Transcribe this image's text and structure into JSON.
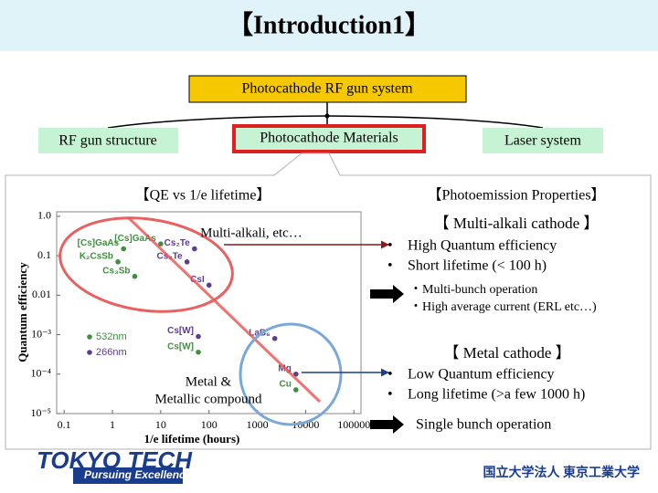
{
  "title": "【Introduction1】",
  "diagram": {
    "root": "Photocathode RF gun system",
    "children": [
      "RF gun structure",
      "Photocathode Materials",
      "Laser system"
    ]
  },
  "left_panel": {
    "heading": "【QE vs 1/e lifetime】",
    "plot": {
      "y_label": "Quantum efficiency",
      "x_label": "1/e lifetime (hours)",
      "log_x": true,
      "log_y": true,
      "xlim": [
        0.07,
        140000
      ],
      "ylim": [
        1e-05,
        1.3
      ],
      "xticks": [
        0.1,
        1,
        10,
        100,
        1000,
        10000,
        100000
      ],
      "yticks": [
        {
          "value": 1,
          "label": "1.0"
        },
        0.1,
        0.01,
        {
          "value": 0.001,
          "label": "10⁻³"
        },
        {
          "value": 0.0001,
          "label": "10⁻⁴"
        },
        {
          "value": 1e-05,
          "label": "10⁻⁵"
        }
      ],
      "legend": [
        {
          "name": "532nm",
          "color": "#3f8f3f"
        },
        {
          "name": "266nm",
          "color": "#5b3f8c"
        }
      ],
      "points": [
        {
          "label": "[Cs]GaAs",
          "x": 10,
          "y": 0.2,
          "series": 0
        },
        {
          "label": "[Cs]GaAs",
          "x": 1.7,
          "y": 0.15,
          "series": 0
        },
        {
          "label": "K₂CsSb",
          "x": 1.3,
          "y": 0.07,
          "series": 0
        },
        {
          "label": "Cs₃Sb",
          "x": 2.9,
          "y": 0.03,
          "series": 0
        },
        {
          "label": "Cs₂Te",
          "x": 50,
          "y": 0.15,
          "series": 1
        },
        {
          "label": "Cs₂Te",
          "x": 35,
          "y": 0.07,
          "series": 1
        },
        {
          "label": "CsI",
          "x": 100,
          "y": 0.018,
          "series": 1
        },
        {
          "label": "Cs[W]",
          "x": 60,
          "y": 0.0009,
          "series": 1
        },
        {
          "label": "Cs[W]",
          "x": 60,
          "y": 0.00036,
          "series": 0
        },
        {
          "label": "LaB₆",
          "x": 2300,
          "y": 0.0008,
          "series": 1
        },
        {
          "label": "Mg",
          "x": 6300,
          "y": 0.0001,
          "series": 1
        },
        {
          "label": "Cu",
          "x": 6300,
          "y": 4e-05,
          "series": 0
        }
      ],
      "annotations": [
        "Multi-alkali, etc…",
        "Metal &",
        "Metallic compound"
      ]
    }
  },
  "right_panel": {
    "heading": "【Photoemission Properties】",
    "multi_alkali": {
      "heading": "【 Multi-alkali cathode 】",
      "bullets": [
        "High Quantum efficiency",
        "Short lifetime (< 100 h)"
      ],
      "results": [
        "・Multi-bunch operation",
        "・High average current (ERL etc…)"
      ]
    },
    "metal": {
      "heading": "【 Metal cathode 】",
      "bullets": [
        "Low Quantum efficiency",
        "Long lifetime (>a few 1000 h)"
      ],
      "results": [
        "Single bunch operation"
      ]
    }
  },
  "footer": {
    "logo": "TOKYO TECH",
    "tagline": "Pursuing Excellence",
    "institution": "国立大学法人 東京工業大学"
  }
}
